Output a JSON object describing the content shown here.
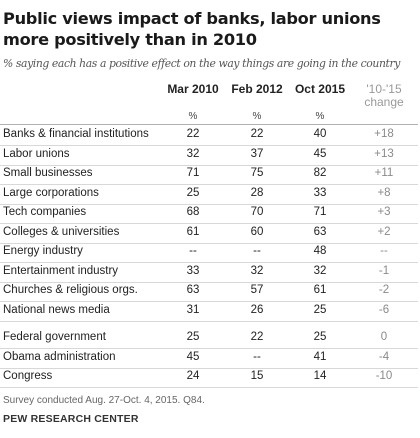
{
  "title": "Public views impact of banks, labor unions more positively than in 2010",
  "subtitle": "% saying each has a positive effect on the way things are going in the country",
  "columns": [
    {
      "label": "Mar 2010",
      "sub": "%"
    },
    {
      "label": "Feb 2012",
      "sub": "%"
    },
    {
      "label": "Oct 2015",
      "sub": "%"
    },
    {
      "label": "'10-'15 change",
      "sub": ""
    }
  ],
  "rows": [
    {
      "label": "Banks & financial institutions",
      "values": [
        "22",
        "22",
        "40",
        "+18"
      ]
    },
    {
      "label": "Labor unions",
      "values": [
        "32",
        "37",
        "45",
        "+13"
      ]
    },
    {
      "label": "Small businesses",
      "values": [
        "71",
        "75",
        "82",
        "+11"
      ]
    },
    {
      "label": "Large corporations",
      "values": [
        "25",
        "28",
        "33",
        "+8"
      ]
    },
    {
      "label": "Tech companies",
      "values": [
        "68",
        "70",
        "71",
        "+3"
      ]
    },
    {
      "label": "Colleges & universities",
      "values": [
        "61",
        "60",
        "63",
        "+2"
      ]
    },
    {
      "label": "Energy industry",
      "values": [
        "--",
        "--",
        "48",
        "--"
      ]
    },
    {
      "label": "Entertainment industry",
      "values": [
        "33",
        "32",
        "32",
        "-1"
      ]
    },
    {
      "label": "Churches & religious orgs.",
      "values": [
        "63",
        "57",
        "61",
        "-2"
      ]
    },
    {
      "label": "National news media",
      "values": [
        "31",
        "26",
        "25",
        "-6"
      ]
    },
    {
      "label": "Federal government",
      "values": [
        "25",
        "22",
        "25",
        "0"
      ]
    },
    {
      "label": "Obama administration",
      "values": [
        "45",
        "--",
        "41",
        "-4"
      ]
    },
    {
      "label": "Congress",
      "values": [
        "24",
        "15",
        "14",
        "-10"
      ]
    }
  ],
  "note": "Survey conducted Aug. 27-Oct. 4, 2015. Q84.",
  "source": "PEW RESEARCH CENTER",
  "colors": {
    "text": "#222222",
    "change": "#8a8a8a",
    "rule": "#d8d8d8"
  },
  "chart_data": {
    "type": "table",
    "title": "Public views impact of banks, labor unions more positively than in 2010",
    "subtitle": "% saying each has a positive effect on the way things are going in the country",
    "columns": [
      "Mar 2010",
      "Feb 2012",
      "Oct 2015",
      "'10-'15 change"
    ],
    "categories": [
      "Banks & financial institutions",
      "Labor unions",
      "Small businesses",
      "Large corporations",
      "Tech companies",
      "Colleges & universities",
      "Energy industry",
      "Entertainment industry",
      "Churches & religious orgs.",
      "National news media",
      "Federal government",
      "Obama administration",
      "Congress"
    ],
    "series": [
      {
        "name": "Mar 2010",
        "values": [
          22,
          32,
          71,
          25,
          68,
          61,
          null,
          33,
          63,
          31,
          25,
          45,
          24
        ]
      },
      {
        "name": "Feb 2012",
        "values": [
          22,
          37,
          75,
          28,
          70,
          60,
          null,
          32,
          57,
          26,
          22,
          null,
          15
        ]
      },
      {
        "name": "Oct 2015",
        "values": [
          40,
          45,
          82,
          33,
          71,
          63,
          48,
          32,
          61,
          25,
          25,
          41,
          14
        ]
      },
      {
        "name": "'10-'15 change",
        "values": [
          18,
          13,
          11,
          8,
          3,
          2,
          null,
          -1,
          -2,
          -6,
          0,
          -4,
          -10
        ]
      }
    ]
  }
}
